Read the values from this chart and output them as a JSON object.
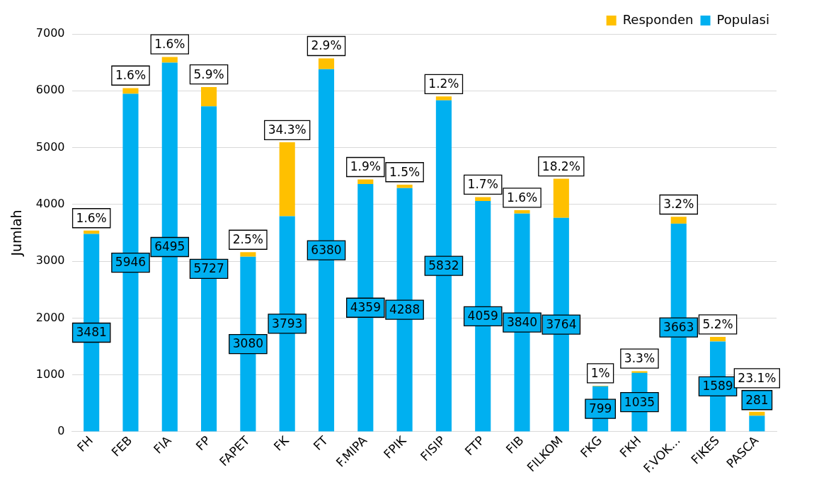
{
  "chart_data": {
    "type": "bar",
    "stacked": true,
    "ylabel": "Jumlah",
    "categories": [
      "FH",
      "FEB",
      "FIA",
      "FP",
      "FAPET",
      "FK",
      "FT",
      "F.MIPA",
      "FPIK",
      "FISIP",
      "FTP",
      "FIB",
      "FILKOM",
      "FKG",
      "FKH",
      "F.VOK...",
      "FIKES",
      "PASCA"
    ],
    "series": [
      {
        "name": "Populasi",
        "color": "#00b0f0",
        "values": [
          3481,
          5946,
          6495,
          5727,
          3080,
          3793,
          6380,
          4359,
          4288,
          5832,
          4059,
          3840,
          3764,
          799,
          1035,
          3663,
          1589,
          281
        ],
        "value_labels": [
          "3481",
          "5946",
          "6495",
          "5727",
          "3080",
          "3793",
          "6380",
          "4359",
          "4288",
          "5832",
          "4059",
          "3840",
          "3764",
          "799",
          "1035",
          "3663",
          "1589",
          "281"
        ]
      },
      {
        "name": "Responden",
        "color": "#ffc000",
        "values": [
          60,
          100,
          100,
          340,
          80,
          1300,
          190,
          80,
          60,
          70,
          70,
          60,
          690,
          10,
          30,
          120,
          80,
          70
        ]
      }
    ],
    "annotations": [
      {
        "text": "1.6%",
        "x": "FH",
        "y": 3540
      },
      {
        "text": "1.6%",
        "x": "FEB",
        "y": 6050
      },
      {
        "text": "1.6%",
        "x": "FIA",
        "y": 6600
      },
      {
        "text": "5.9%",
        "x": "FP",
        "y": 6070
      },
      {
        "text": "2.5%",
        "x": "FAPET",
        "y": 3160
      },
      {
        "text": "34.3%",
        "x": "FK",
        "y": 5090
      },
      {
        "text": "2.9%",
        "x": "FT",
        "y": 6570
      },
      {
        "text": "1.9%",
        "x": "F.MIPA",
        "y": 4440
      },
      {
        "text": "1.5%",
        "x": "FPIK",
        "y": 4350
      },
      {
        "text": "1.2%",
        "x": "FISIP",
        "y": 5900
      },
      {
        "text": "1.7%",
        "x": "FTP",
        "y": 4130
      },
      {
        "text": "1.6%",
        "x": "FIB",
        "y": 3900
      },
      {
        "text": "18.2%",
        "x": "FILKOM",
        "y": 4450
      },
      {
        "text": "1%",
        "x": "FKG",
        "y": 810
      },
      {
        "text": "3.3%",
        "x": "FKH",
        "y": 1070
      },
      {
        "text": "3.2%",
        "x": "F.VOK...",
        "y": 3780
      },
      {
        "text": "5.2%",
        "x": "FIKES",
        "y": 1670
      },
      {
        "text": "23.1%",
        "x": "PASCA",
        "y": 350
      }
    ],
    "ylim": [
      0,
      7000
    ],
    "yticks": [
      0,
      1000,
      2000,
      3000,
      4000,
      5000,
      6000,
      7000
    ],
    "grid": "y",
    "legend": "top right"
  }
}
